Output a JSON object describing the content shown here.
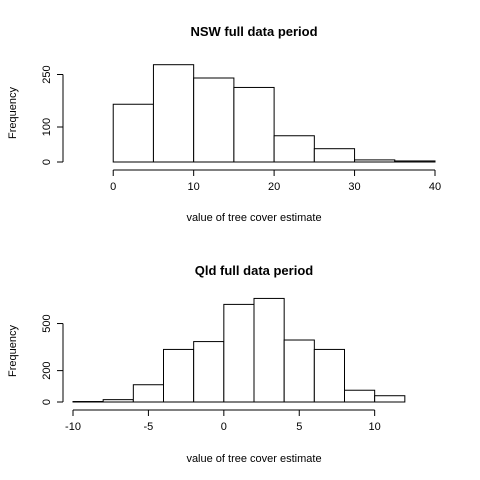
{
  "chart_data": [
    {
      "type": "histogram",
      "title": "NSW full data period",
      "xlabel": "value of tree cover estimate",
      "ylabel": "Frequency",
      "xlim": [
        -5,
        40
      ],
      "ylim": [
        0,
        280
      ],
      "x_ticks": [
        0,
        10,
        20,
        30,
        40
      ],
      "y_ticks": [
        0,
        100,
        250
      ],
      "bins": [
        {
          "start": -5,
          "end": 0,
          "count": 0
        },
        {
          "start": 0,
          "end": 5,
          "count": 165
        },
        {
          "start": 5,
          "end": 10,
          "count": 278
        },
        {
          "start": 10,
          "end": 15,
          "count": 240
        },
        {
          "start": 15,
          "end": 20,
          "count": 213
        },
        {
          "start": 20,
          "end": 25,
          "count": 75
        },
        {
          "start": 25,
          "end": 30,
          "count": 38
        },
        {
          "start": 30,
          "end": 35,
          "count": 6
        },
        {
          "start": 35,
          "end": 40,
          "count": 3
        }
      ]
    },
    {
      "type": "histogram",
      "title": "Qld full data period",
      "xlabel": "value of tree cover estimate",
      "ylabel": "Frequency",
      "xlim": [
        -10,
        14
      ],
      "ylim": [
        0,
        650
      ],
      "x_ticks": [
        -10,
        -5,
        0,
        5,
        10
      ],
      "y_ticks": [
        0,
        200,
        500
      ],
      "bins": [
        {
          "start": -10,
          "end": -8,
          "count": 3
        },
        {
          "start": -8,
          "end": -6,
          "count": 15
        },
        {
          "start": -6,
          "end": -4,
          "count": 110
        },
        {
          "start": -4,
          "end": -2,
          "count": 335
        },
        {
          "start": -2,
          "end": 0,
          "count": 385
        },
        {
          "start": 0,
          "end": 2,
          "count": 622
        },
        {
          "start": 2,
          "end": 4,
          "count": 660
        },
        {
          "start": 4,
          "end": 6,
          "count": 395
        },
        {
          "start": 6,
          "end": 8,
          "count": 335
        },
        {
          "start": 8,
          "end": 10,
          "count": 75
        },
        {
          "start": 10,
          "end": 12,
          "count": 40
        }
      ]
    }
  ]
}
